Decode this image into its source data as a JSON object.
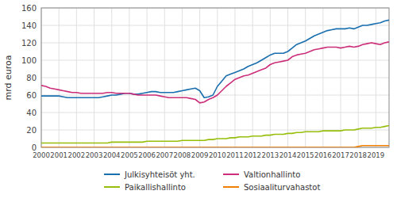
{
  "chart_data": {
    "type": "line",
    "ylabel": "mrd euroa",
    "categories": [
      "2000",
      null,
      null,
      null,
      "2001",
      null,
      null,
      null,
      "2002",
      null,
      null,
      null,
      "2003",
      null,
      null,
      null,
      "2004",
      null,
      null,
      null,
      "2005",
      null,
      null,
      null,
      "2006",
      null,
      null,
      null,
      "2007",
      null,
      null,
      null,
      "2008",
      null,
      null,
      null,
      "2009",
      null,
      null,
      null,
      "2010",
      null,
      null,
      null,
      "2011",
      null,
      null,
      null,
      "2012",
      null,
      null,
      null,
      "2013",
      null,
      null,
      null,
      "2014",
      null,
      null,
      null,
      "2015",
      null,
      null,
      null,
      "2016",
      null,
      null,
      null,
      "2017",
      null,
      null,
      null,
      "2018",
      null,
      null,
      null,
      "2019",
      null,
      null,
      null
    ],
    "ylim": [
      0,
      160
    ],
    "yticks": [
      0,
      20,
      40,
      60,
      80,
      100,
      120,
      140,
      160
    ],
    "grid": true,
    "legend": "bottom",
    "series": [
      {
        "name": "Julkisyhteisöt yht.",
        "color": "#1a6faf",
        "values": [
          59,
          59,
          59,
          59,
          59,
          58,
          57,
          57,
          57,
          57,
          57,
          57,
          57,
          57,
          58,
          59,
          60,
          60,
          61,
          62,
          62,
          61,
          61,
          62,
          63,
          64,
          64,
          63,
          63,
          63,
          63,
          64,
          65,
          66,
          67,
          68,
          65,
          57,
          58,
          60,
          70,
          76,
          82,
          84,
          86,
          88,
          90,
          93,
          95,
          97,
          100,
          103,
          106,
          108,
          108,
          108,
          110,
          114,
          118,
          120,
          122,
          125,
          128,
          130,
          132,
          134,
          135,
          136,
          136,
          136,
          137,
          136,
          138,
          140,
          140,
          141,
          142,
          143,
          145,
          146
        ]
      },
      {
        "name": "Valtionhallinto",
        "color": "#cc2e7a",
        "values": [
          71,
          70,
          68,
          67,
          66,
          65,
          64,
          63,
          63,
          62,
          62,
          62,
          62,
          62,
          62,
          63,
          63,
          62,
          62,
          62,
          62,
          61,
          60,
          60,
          60,
          60,
          60,
          59,
          58,
          57,
          57,
          57,
          57,
          57,
          56,
          55,
          51,
          52,
          55,
          57,
          60,
          65,
          70,
          74,
          78,
          80,
          82,
          83,
          85,
          87,
          89,
          91,
          95,
          97,
          98,
          99,
          100,
          104,
          106,
          107,
          108,
          110,
          112,
          113,
          114,
          115,
          115,
          115,
          114,
          115,
          116,
          115,
          116,
          118,
          119,
          120,
          119,
          118,
          120,
          121
        ]
      },
      {
        "name": "Paikallishallinto",
        "color": "#96be0a",
        "values": [
          5,
          5,
          5,
          5,
          5,
          5,
          5,
          5,
          5,
          5,
          5,
          5,
          5,
          5,
          5,
          5,
          6,
          6,
          6,
          6,
          6,
          6,
          6,
          6,
          7,
          7,
          7,
          7,
          7,
          7,
          7,
          7,
          8,
          8,
          8,
          8,
          8,
          8,
          9,
          9,
          10,
          10,
          10,
          11,
          11,
          12,
          12,
          12,
          13,
          13,
          13,
          14,
          14,
          15,
          15,
          15,
          16,
          16,
          17,
          17,
          18,
          18,
          18,
          18,
          19,
          19,
          19,
          19,
          19,
          20,
          20,
          20,
          21,
          22,
          22,
          22,
          23,
          23,
          24,
          25
        ]
      },
      {
        "name": "Sosiaaliturvahastot",
        "color": "#f08000",
        "values": [
          0,
          0,
          0,
          0,
          0,
          0,
          0,
          0,
          0,
          0,
          0,
          0,
          0,
          0,
          0,
          0,
          0,
          0,
          0,
          0,
          0,
          0,
          0,
          0,
          0,
          0,
          0,
          0,
          0,
          0,
          0,
          0,
          0,
          0,
          0,
          0,
          0,
          0,
          0,
          0,
          0,
          0,
          0,
          0,
          0,
          0,
          0,
          0,
          0,
          0,
          0,
          0,
          0,
          0,
          0,
          0,
          0,
          0,
          0,
          0,
          0,
          0,
          0,
          0,
          0,
          0,
          0,
          0,
          0,
          0,
          0,
          0,
          1,
          2,
          2,
          2,
          2,
          2,
          2,
          2
        ]
      }
    ]
  }
}
